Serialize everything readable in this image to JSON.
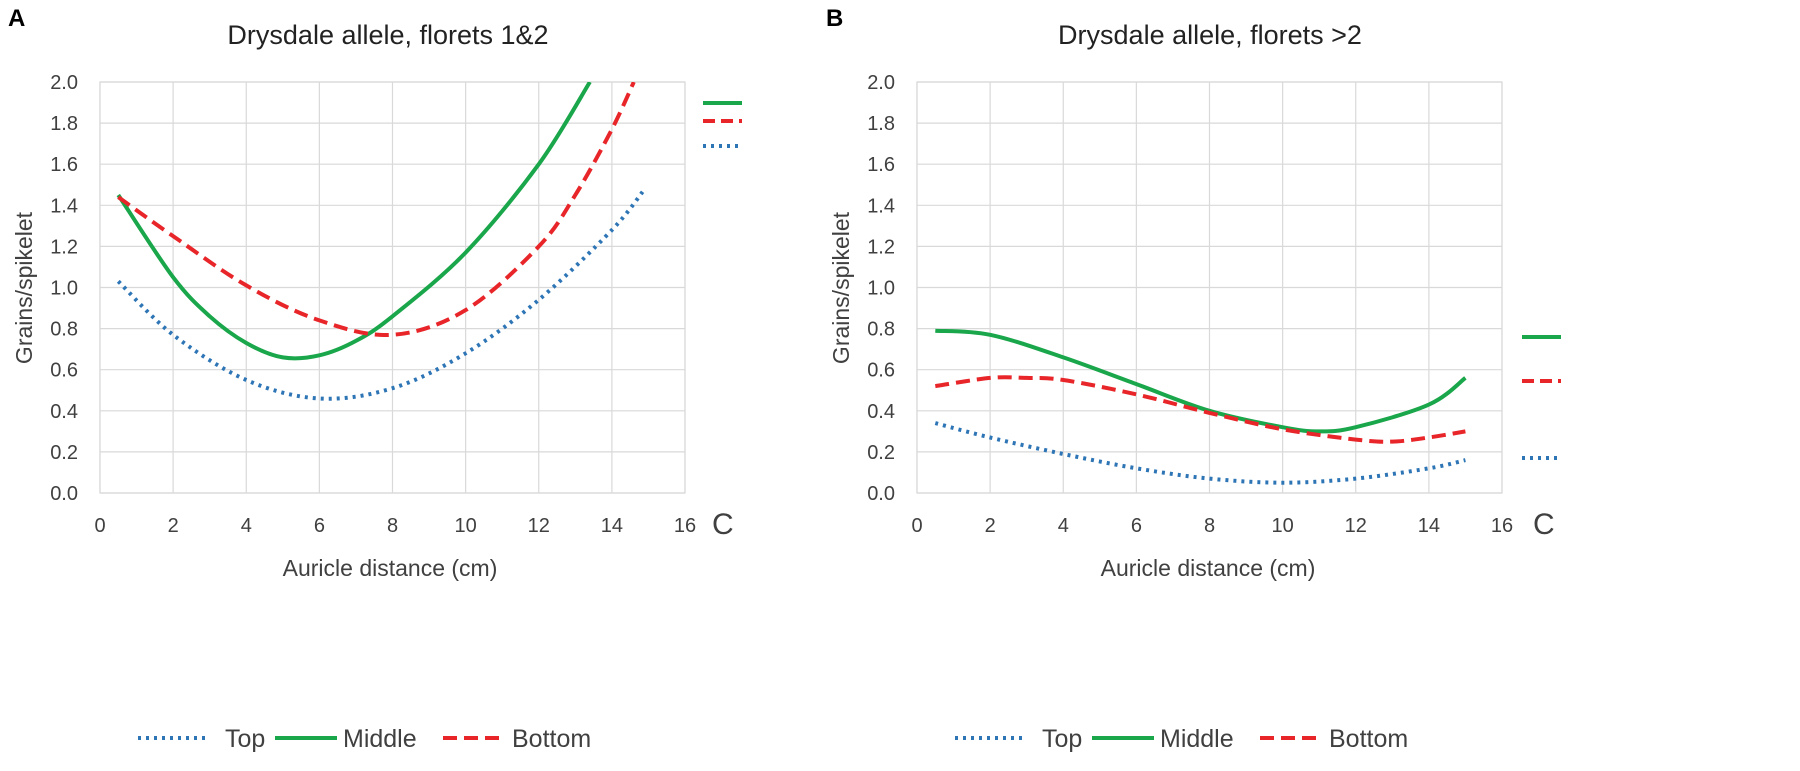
{
  "chart_data": [
    {
      "panel_label": "A",
      "type": "line",
      "title": "Drysdale allele, florets 1&2",
      "xlabel": "Auricle distance (cm)",
      "ylabel": "Grains/spikelet",
      "xlim": [
        0,
        16
      ],
      "ylim": [
        0,
        2.0
      ],
      "x_ticks": [
        0,
        2,
        4,
        6,
        8,
        10,
        12,
        14,
        16
      ],
      "y_ticks": [
        "0.0",
        "0.2",
        "0.4",
        "0.6",
        "0.8",
        "1.0",
        "1.2",
        "1.4",
        "1.6",
        "1.8",
        "2.0"
      ],
      "grid": true,
      "cut_off_label": "C",
      "series": [
        {
          "name": "Top",
          "style": "dotted",
          "color": "#2e75b6",
          "x": [
            0.5,
            2,
            4,
            6,
            8,
            10,
            12,
            14,
            14.9
          ],
          "y": [
            1.03,
            0.77,
            0.55,
            0.46,
            0.51,
            0.68,
            0.94,
            1.28,
            1.48
          ]
        },
        {
          "name": "Middle",
          "style": "solid",
          "color": "#1aa64a",
          "x": [
            0.5,
            2,
            3,
            4,
            5,
            6,
            7,
            8,
            10,
            12,
            13.4
          ],
          "y": [
            1.45,
            1.05,
            0.86,
            0.73,
            0.66,
            0.67,
            0.74,
            0.86,
            1.17,
            1.6,
            2.0
          ]
        },
        {
          "name": "Bottom",
          "style": "dashed",
          "color": "#e8262a",
          "x": [
            0.5,
            2,
            4,
            6,
            8,
            10,
            12,
            13,
            14,
            14.6
          ],
          "y": [
            1.44,
            1.25,
            1.01,
            0.84,
            0.77,
            0.89,
            1.2,
            1.45,
            1.77,
            2.0
          ]
        }
      ]
    },
    {
      "panel_label": "B",
      "type": "line",
      "title": "Drysdale allele, florets >2",
      "xlabel": "Auricle distance (cm)",
      "ylabel": "Grains/spikelet",
      "xlim": [
        0,
        16
      ],
      "ylim": [
        0,
        2.0
      ],
      "x_ticks": [
        0,
        2,
        4,
        6,
        8,
        10,
        12,
        14,
        16
      ],
      "y_ticks": [
        "0.0",
        "0.2",
        "0.4",
        "0.6",
        "0.8",
        "1.0",
        "1.2",
        "1.4",
        "1.6",
        "1.8",
        "2.0"
      ],
      "grid": true,
      "cut_off_label": "C",
      "series": [
        {
          "name": "Top",
          "style": "dotted",
          "color": "#2e75b6",
          "x": [
            0.5,
            2,
            4,
            6,
            8,
            10,
            12,
            14,
            15
          ],
          "y": [
            0.34,
            0.27,
            0.19,
            0.12,
            0.07,
            0.05,
            0.07,
            0.12,
            0.16
          ]
        },
        {
          "name": "Middle",
          "style": "solid",
          "color": "#1aa64a",
          "x": [
            0.5,
            2,
            4,
            6,
            8,
            10,
            11,
            12,
            14,
            15
          ],
          "y": [
            0.79,
            0.77,
            0.66,
            0.53,
            0.4,
            0.32,
            0.3,
            0.32,
            0.43,
            0.56
          ]
        },
        {
          "name": "Bottom",
          "style": "dashed",
          "color": "#e8262a",
          "x": [
            0.5,
            2,
            3,
            4,
            6,
            8,
            10,
            12,
            13,
            14,
            15
          ],
          "y": [
            0.52,
            0.56,
            0.56,
            0.55,
            0.48,
            0.39,
            0.31,
            0.26,
            0.25,
            0.27,
            0.3
          ]
        }
      ]
    }
  ],
  "legend": {
    "items": [
      {
        "label": "Top",
        "style": "dotted",
        "color": "#2e75b6"
      },
      {
        "label": "Middle",
        "style": "solid",
        "color": "#1aa64a"
      },
      {
        "label": "Bottom",
        "style": "dashed",
        "color": "#e8262a"
      }
    ]
  },
  "colors": {
    "grid": "#d9d9d9",
    "text": "#404040",
    "top": "#2e75b6",
    "middle": "#1aa64a",
    "bottom": "#e8262a"
  }
}
